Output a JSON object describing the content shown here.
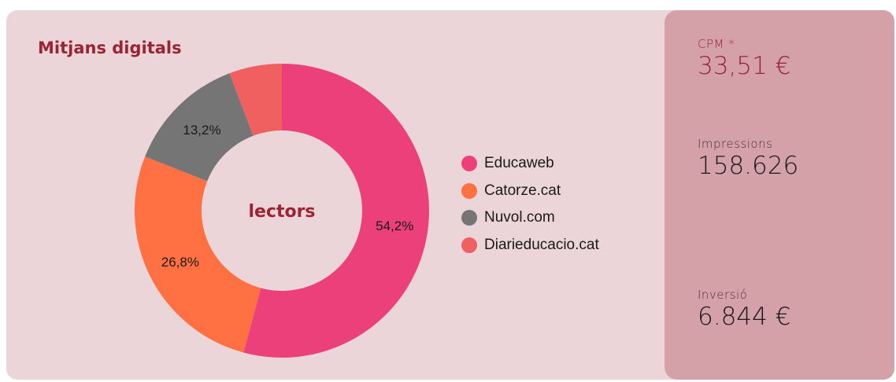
{
  "title": "Mitjans digitals",
  "center_label": "lectors",
  "chart_data": {
    "type": "pie",
    "title": "Mitjans digitals",
    "donut": true,
    "legend_position": "right",
    "categories": [
      "Educaweb",
      "Catorze.cat",
      "Nuvol.com",
      "Diarieducacio.cat"
    ],
    "values": [
      54.2,
      26.8,
      13.2,
      5.8
    ],
    "value_labels": [
      "54,2%",
      "26,8%",
      "13,2%",
      ""
    ],
    "colors": [
      "#ec407a",
      "#ff7043",
      "#757575",
      "#f06060"
    ]
  },
  "metrics": {
    "cpm": {
      "label": "CPM *",
      "value": "33,51 €"
    },
    "impressions": {
      "label": "Impressions",
      "value": "158.626"
    },
    "investment": {
      "label": "Inversió",
      "value": "6.844 €"
    }
  }
}
